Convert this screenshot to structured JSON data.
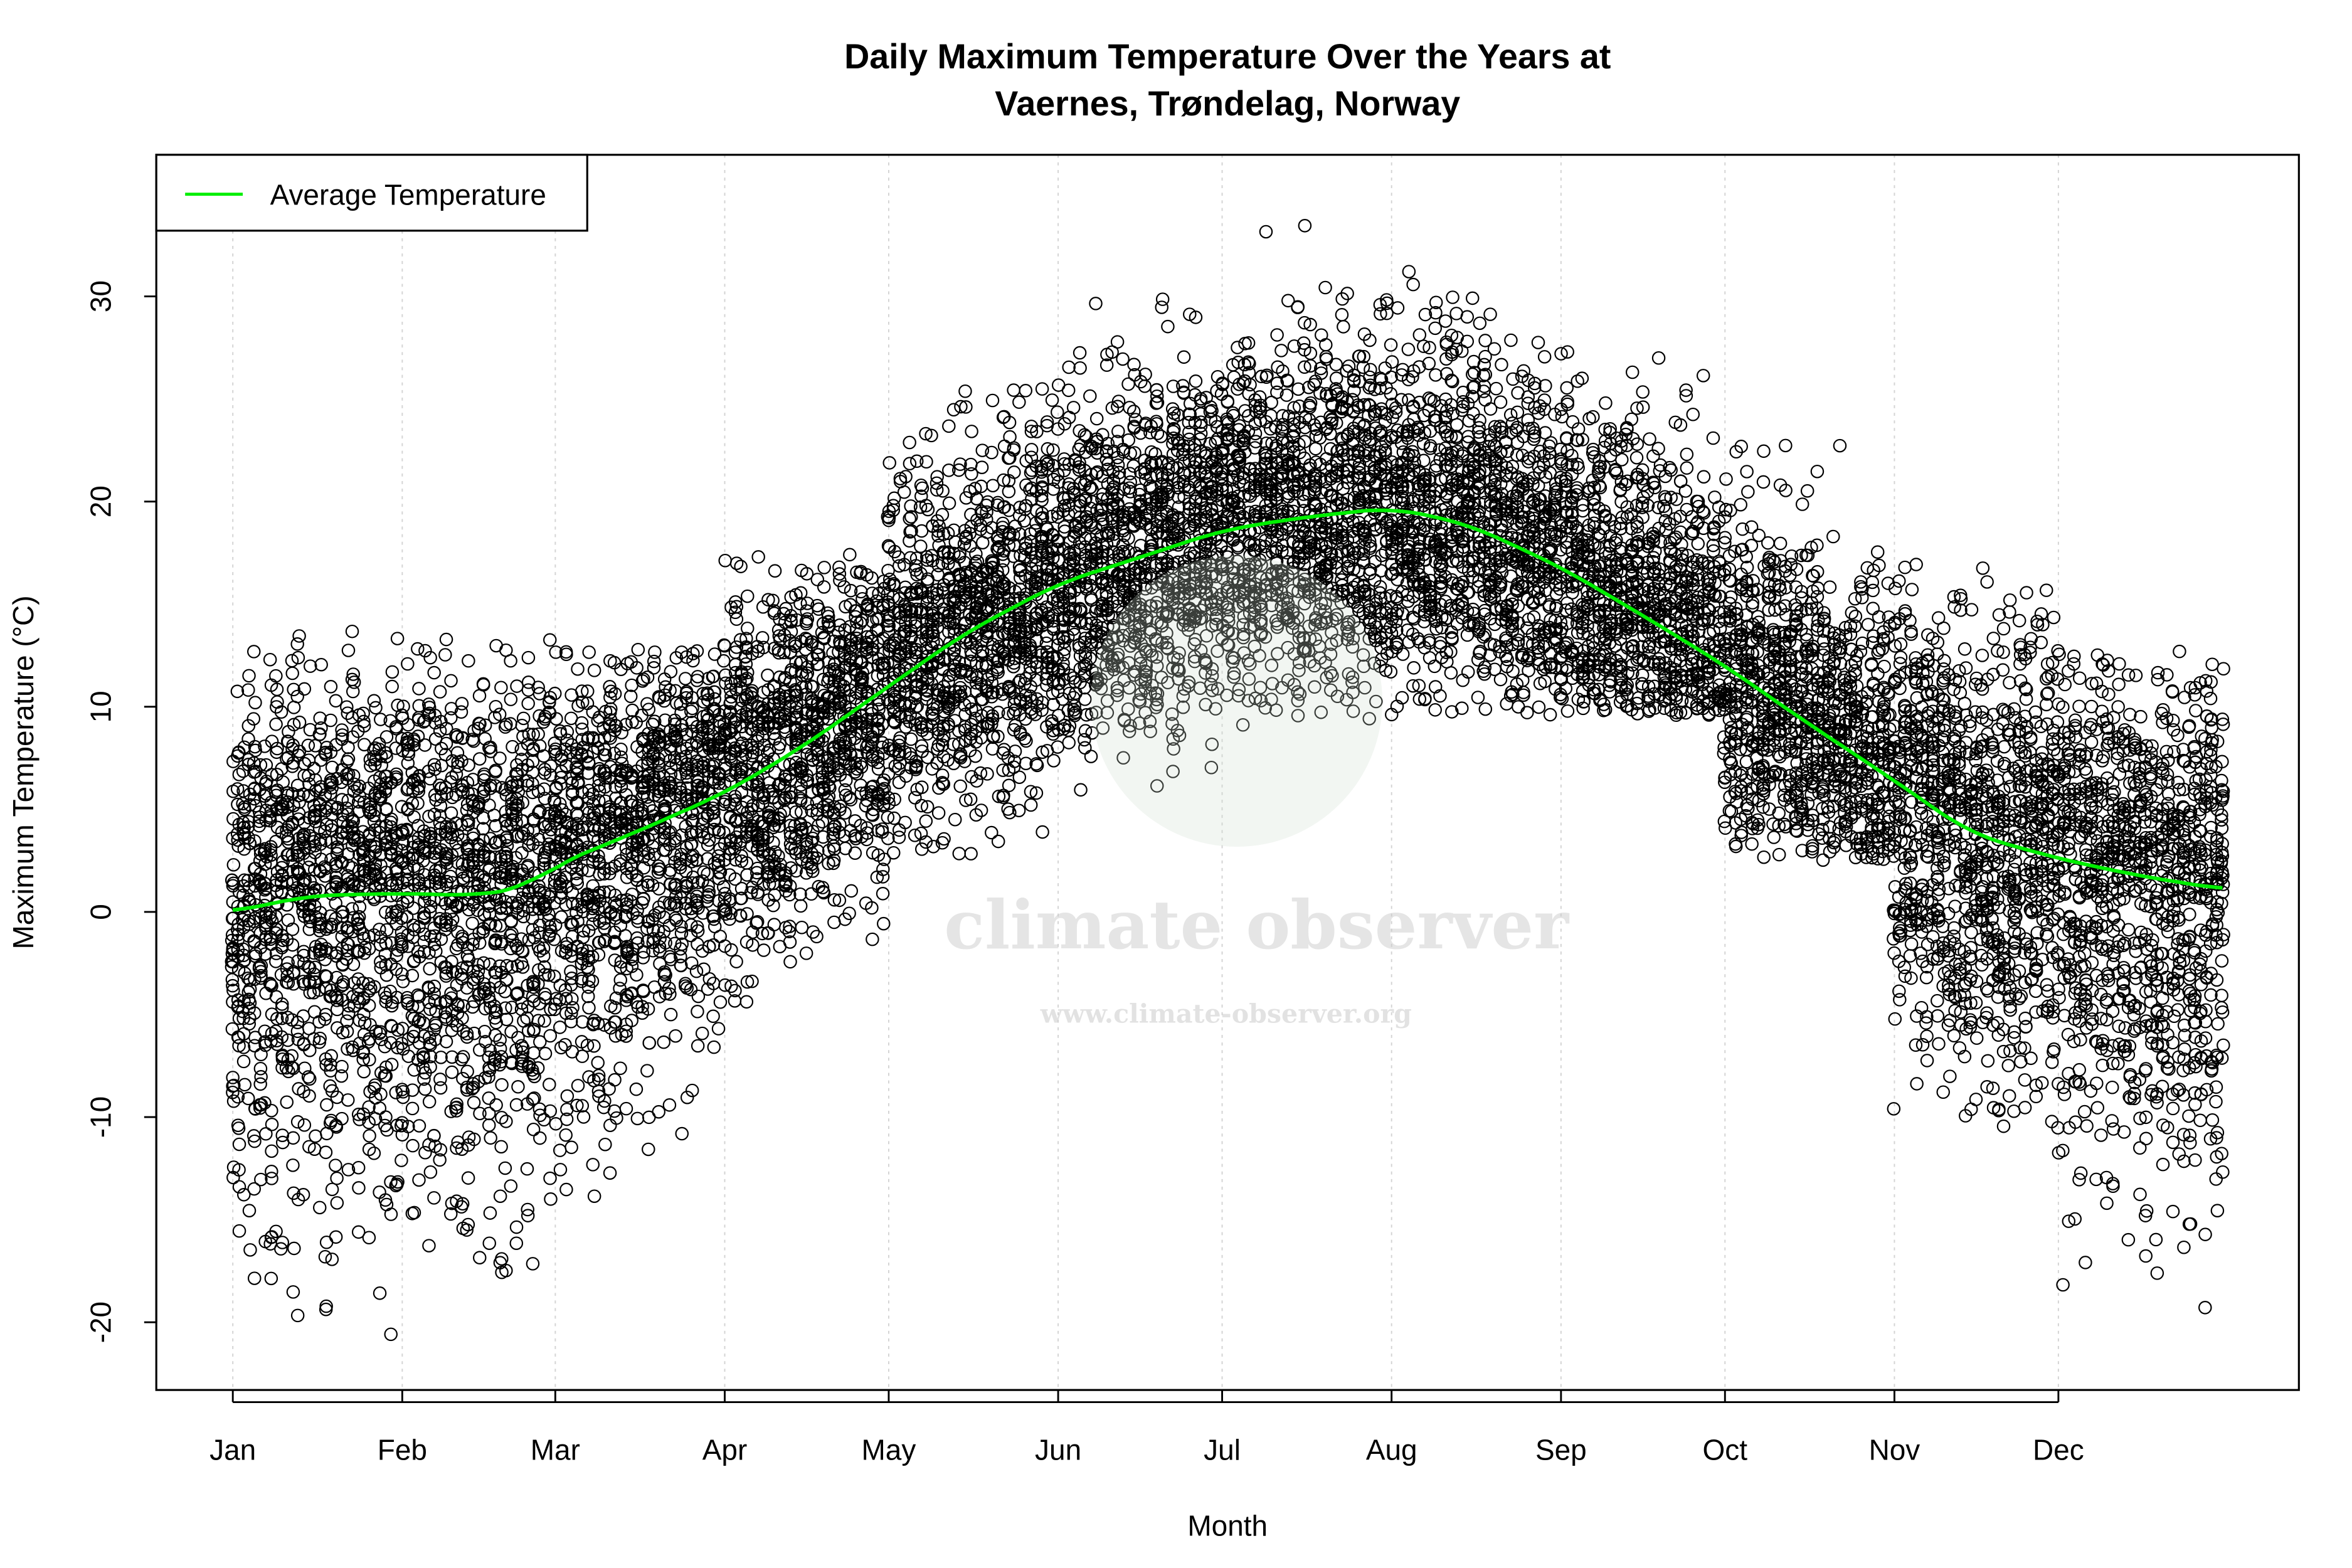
{
  "chart_data": {
    "type": "scatter",
    "title": [
      "Daily Maximum Temperature Over the Years at",
      "Vaernes, Trøndelag, Norway"
    ],
    "xlabel": "Month",
    "ylabel": "Maximum Temperature (°C)",
    "x_ticks": [
      {
        "label": "Jan",
        "day": 1
      },
      {
        "label": "Feb",
        "day": 32
      },
      {
        "label": "Mar",
        "day": 60
      },
      {
        "label": "Apr",
        "day": 91
      },
      {
        "label": "May",
        "day": 121
      },
      {
        "label": "Jun",
        "day": 152
      },
      {
        "label": "Jul",
        "day": 182
      },
      {
        "label": "Aug",
        "day": 213
      },
      {
        "label": "Sep",
        "day": 244
      },
      {
        "label": "Oct",
        "day": 274
      },
      {
        "label": "Nov",
        "day": 305
      },
      {
        "label": "Dec",
        "day": 335
      }
    ],
    "y_ticks": [
      -20,
      -10,
      0,
      10,
      20,
      30
    ],
    "xlim": [
      -13,
      379
    ],
    "ylim": [
      -23.3,
      36.9
    ],
    "grid": "vertical dotted at month ticks",
    "legend": {
      "placement": "top-left",
      "entries": [
        {
          "label": "Average Temperature",
          "color": "#00ee00"
        }
      ]
    },
    "point_style": {
      "marker": "open circle",
      "color": "#000000"
    },
    "average_series": {
      "name": "Average Temperature",
      "color": "#00ee00",
      "points": [
        [
          1,
          0.0
        ],
        [
          15,
          0.8
        ],
        [
          32,
          0.9
        ],
        [
          46,
          0.8
        ],
        [
          55,
          1.2
        ],
        [
          60,
          2.3
        ],
        [
          74,
          3.8
        ],
        [
          91,
          5.8
        ],
        [
          105,
          8.0
        ],
        [
          121,
          11.0
        ],
        [
          135,
          13.6
        ],
        [
          152,
          16.0
        ],
        [
          166,
          17.2
        ],
        [
          182,
          18.6
        ],
        [
          196,
          19.2
        ],
        [
          213,
          19.7
        ],
        [
          227,
          18.9
        ],
        [
          244,
          16.8
        ],
        [
          258,
          14.6
        ],
        [
          274,
          12.0
        ],
        [
          288,
          9.4
        ],
        [
          305,
          6.4
        ],
        [
          319,
          3.8
        ],
        [
          335,
          2.6
        ],
        [
          349,
          1.8
        ],
        [
          365,
          1.1
        ]
      ]
    },
    "observed_range_by_month": [
      {
        "month": "Jan",
        "min": -21.0,
        "max": 13.7
      },
      {
        "month": "Feb",
        "min": -17.8,
        "max": 13.8
      },
      {
        "month": "Mar",
        "min": -14.0,
        "max": 12.8
      },
      {
        "month": "Apr",
        "min": -4.4,
        "max": 17.6
      },
      {
        "month": "May",
        "min": 2.5,
        "max": 26.0
      },
      {
        "month": "Jun",
        "min": 4.3,
        "max": 30.0
      },
      {
        "month": "Jul",
        "min": 9.0,
        "max": 34.5
      },
      {
        "month": "Aug",
        "min": 9.5,
        "max": 33.5
      },
      {
        "month": "Sep",
        "min": 9.5,
        "max": 30.6
      },
      {
        "month": "Oct",
        "min": 2.5,
        "max": 23.0
      },
      {
        "month": "Nov",
        "min": -10.7,
        "max": 22.1
      },
      {
        "month": "Dec",
        "min": -19.6,
        "max": 13.0
      }
    ]
  },
  "watermark": {
    "name": "climate observer",
    "url": "www.climate-observer.org"
  }
}
